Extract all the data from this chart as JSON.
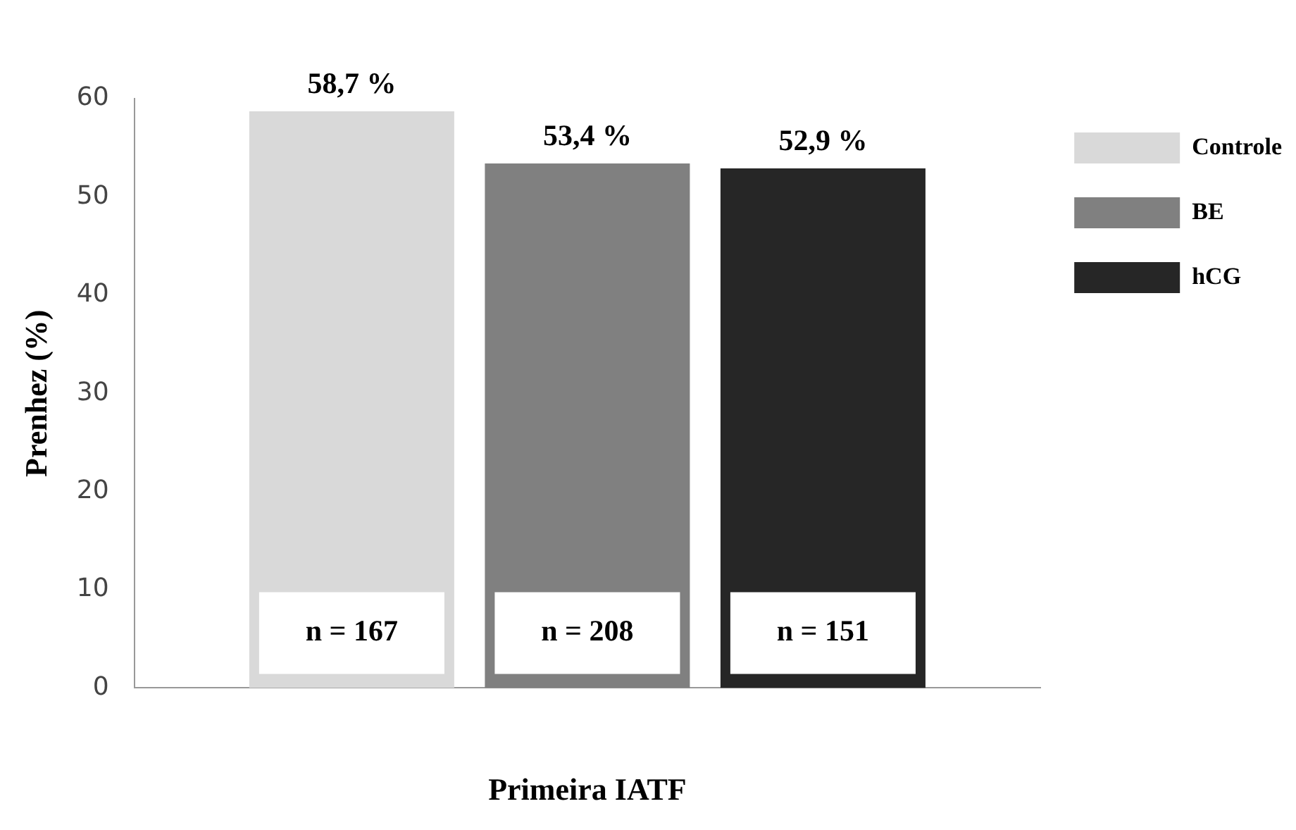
{
  "chart_data": {
    "type": "bar",
    "xlabel": "Primeira IATF",
    "ylabel": "Prenhez (%)",
    "categories": [
      null
    ],
    "series": [
      {
        "name": "Controle",
        "color": "#d9d9d9",
        "values": [
          58.7
        ],
        "value_labels": [
          "58,7 %"
        ]
      },
      {
        "name": "BE",
        "color": "#808080",
        "values": [
          53.4
        ],
        "value_labels": [
          "53,4 %"
        ]
      },
      {
        "name": "hCG",
        "color": "#262626",
        "values": [
          52.9
        ],
        "value_labels": [
          "52,9 %"
        ]
      }
    ],
    "annotations": [
      "n = 167",
      "n = 208",
      "n = 151"
    ],
    "ylim": [
      0,
      60
    ],
    "yticks": [
      0,
      10,
      20,
      30,
      40,
      50,
      60
    ],
    "grid": false,
    "legend": "top right"
  }
}
